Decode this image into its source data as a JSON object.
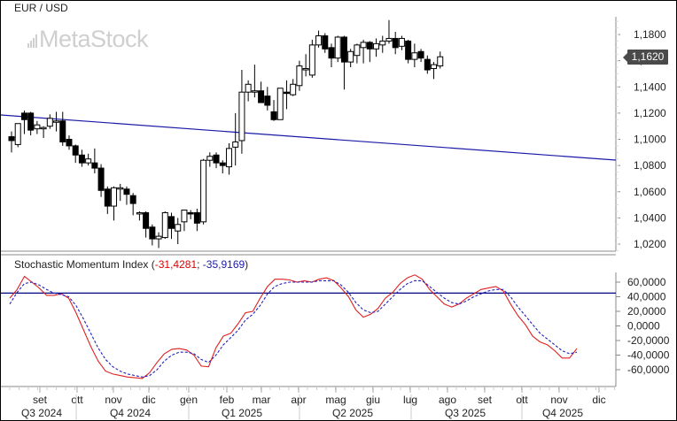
{
  "header": {
    "symbol": "EUR / USD",
    "watermark": "MetaStock"
  },
  "price_panel": {
    "last_price_label": "1,1620",
    "y_ticks": [
      "1,1800",
      "1,1600",
      "1,1400",
      "1,1200",
      "1,1000",
      "1,0800",
      "1,0600",
      "1,0400",
      "1,0200"
    ]
  },
  "indicator_panel": {
    "name": "Stochastic Momentum Index",
    "open_paren": " (",
    "value1": "-31,4281",
    "separator": "; ",
    "value2": "-35,9169",
    "close_paren": ")",
    "y_ticks": [
      "60,0000",
      "40,0000",
      "20,0000",
      "0,0000",
      "-20,0000",
      "-40,0000",
      "-60,0000"
    ],
    "reference_level": 45
  },
  "x_axis": {
    "months": [
      "set",
      "ott",
      "nov",
      "dic",
      "gen",
      "feb",
      "mar",
      "apr",
      "mag",
      "giu",
      "lug",
      "ago",
      "set",
      "ott",
      "nov",
      "dic"
    ],
    "quarters": [
      "Q3 2024",
      "Q4 2024",
      "Q1 2025",
      "Q2 2025",
      "Q3 2025",
      "Q4 2025"
    ]
  },
  "colors": {
    "up_candle": "#ffffff",
    "down_candle": "#000000",
    "trendline": "#1a1aa8",
    "smi_line": "#e02020",
    "signal_line": "#2020c0",
    "reference_line": "#000080",
    "last_price_tag": "#4a4a4a"
  },
  "chart_data": [
    {
      "type": "candlestick",
      "title": "EUR / USD",
      "interval": "weekly",
      "ylim": [
        1.01,
        1.193
      ],
      "y_ticks": [
        1.18,
        1.16,
        1.14,
        1.12,
        1.1,
        1.08,
        1.06,
        1.04,
        1.02
      ],
      "last_price": 1.162,
      "trendline": {
        "start": [
          0,
          1.115
        ],
        "end": [
          1.0,
          1.0815
        ]
      },
      "candles": [
        {
          "o": 1.102,
          "h": 1.106,
          "l": 1.09,
          "c": 1.099
        },
        {
          "o": 1.096,
          "h": 1.109,
          "l": 1.094,
          "c": 1.112
        },
        {
          "o": 1.12,
          "h": 1.122,
          "l": 1.104,
          "c": 1.115
        },
        {
          "o": 1.12,
          "h": 1.121,
          "l": 1.103,
          "c": 1.107
        },
        {
          "o": 1.108,
          "h": 1.114,
          "l": 1.104,
          "c": 1.111
        },
        {
          "o": 1.109,
          "h": 1.11,
          "l": 1.101,
          "c": 1.109
        },
        {
          "o": 1.11,
          "h": 1.119,
          "l": 1.108,
          "c": 1.116
        },
        {
          "o": 1.114,
          "h": 1.121,
          "l": 1.106,
          "c": 1.114
        },
        {
          "o": 1.114,
          "h": 1.121,
          "l": 1.095,
          "c": 1.098
        },
        {
          "o": 1.1,
          "h": 1.103,
          "l": 1.092,
          "c": 1.095
        },
        {
          "o": 1.095,
          "h": 1.096,
          "l": 1.082,
          "c": 1.088
        },
        {
          "o": 1.088,
          "h": 1.092,
          "l": 1.079,
          "c": 1.082
        },
        {
          "o": 1.082,
          "h": 1.089,
          "l": 1.08,
          "c": 1.085
        },
        {
          "o": 1.082,
          "h": 1.093,
          "l": 1.074,
          "c": 1.078
        },
        {
          "o": 1.078,
          "h": 1.081,
          "l": 1.056,
          "c": 1.061
        },
        {
          "o": 1.062,
          "h": 1.064,
          "l": 1.043,
          "c": 1.049
        },
        {
          "o": 1.049,
          "h": 1.064,
          "l": 1.038,
          "c": 1.063
        },
        {
          "o": 1.063,
          "h": 1.066,
          "l": 1.053,
          "c": 1.063
        },
        {
          "o": 1.062,
          "h": 1.064,
          "l": 1.05,
          "c": 1.058
        },
        {
          "o": 1.057,
          "h": 1.059,
          "l": 1.042,
          "c": 1.051
        },
        {
          "o": 1.044,
          "h": 1.045,
          "l": 1.038,
          "c": 1.044
        },
        {
          "o": 1.044,
          "h": 1.045,
          "l": 1.025,
          "c": 1.032
        },
        {
          "o": 1.033,
          "h": 1.035,
          "l": 1.019,
          "c": 1.024
        },
        {
          "o": 1.024,
          "h": 1.029,
          "l": 1.017,
          "c": 1.026
        },
        {
          "o": 1.025,
          "h": 1.045,
          "l": 1.024,
          "c": 1.044
        },
        {
          "o": 1.041,
          "h": 1.044,
          "l": 1.024,
          "c": 1.032
        },
        {
          "o": 1.03,
          "h": 1.04,
          "l": 1.02,
          "c": 1.035
        },
        {
          "o": 1.037,
          "h": 1.045,
          "l": 1.03,
          "c": 1.046
        },
        {
          "o": 1.044,
          "h": 1.046,
          "l": 1.039,
          "c": 1.043
        },
        {
          "o": 1.044,
          "h": 1.047,
          "l": 1.03,
          "c": 1.036
        },
        {
          "o": 1.037,
          "h": 1.085,
          "l": 1.035,
          "c": 1.084
        },
        {
          "o": 1.084,
          "h": 1.09,
          "l": 1.079,
          "c": 1.087
        },
        {
          "o": 1.088,
          "h": 1.09,
          "l": 1.078,
          "c": 1.082
        },
        {
          "o": 1.082,
          "h": 1.084,
          "l": 1.074,
          "c": 1.08
        },
        {
          "o": 1.079,
          "h": 1.097,
          "l": 1.073,
          "c": 1.093
        },
        {
          "o": 1.094,
          "h": 1.12,
          "l": 1.08,
          "c": 1.098
        },
        {
          "o": 1.099,
          "h": 1.153,
          "l": 1.089,
          "c": 1.136
        },
        {
          "o": 1.136,
          "h": 1.145,
          "l": 1.129,
          "c": 1.142
        },
        {
          "o": 1.136,
          "h": 1.157,
          "l": 1.132,
          "c": 1.137
        },
        {
          "o": 1.137,
          "h": 1.144,
          "l": 1.13,
          "c": 1.128
        },
        {
          "o": 1.133,
          "h": 1.14,
          "l": 1.122,
          "c": 1.126
        },
        {
          "o": 1.121,
          "h": 1.13,
          "l": 1.114,
          "c": 1.115
        },
        {
          "o": 1.115,
          "h": 1.138,
          "l": 1.115,
          "c": 1.139
        },
        {
          "o": 1.136,
          "h": 1.145,
          "l": 1.123,
          "c": 1.135
        },
        {
          "o": 1.134,
          "h": 1.146,
          "l": 1.133,
          "c": 1.142
        },
        {
          "o": 1.141,
          "h": 1.16,
          "l": 1.137,
          "c": 1.156
        },
        {
          "o": 1.153,
          "h": 1.165,
          "l": 1.148,
          "c": 1.154
        },
        {
          "o": 1.149,
          "h": 1.176,
          "l": 1.147,
          "c": 1.172
        },
        {
          "o": 1.172,
          "h": 1.183,
          "l": 1.17,
          "c": 1.179
        },
        {
          "o": 1.179,
          "h": 1.181,
          "l": 1.166,
          "c": 1.169
        },
        {
          "o": 1.17,
          "h": 1.173,
          "l": 1.155,
          "c": 1.162
        },
        {
          "o": 1.162,
          "h": 1.179,
          "l": 1.159,
          "c": 1.178
        },
        {
          "o": 1.178,
          "h": 1.179,
          "l": 1.138,
          "c": 1.159
        },
        {
          "o": 1.159,
          "h": 1.169,
          "l": 1.155,
          "c": 1.167
        },
        {
          "o": 1.164,
          "h": 1.173,
          "l": 1.158,
          "c": 1.172
        },
        {
          "o": 1.17,
          "h": 1.176,
          "l": 1.158,
          "c": 1.174
        },
        {
          "o": 1.174,
          "h": 1.175,
          "l": 1.159,
          "c": 1.169
        },
        {
          "o": 1.169,
          "h": 1.177,
          "l": 1.163,
          "c": 1.173
        },
        {
          "o": 1.172,
          "h": 1.179,
          "l": 1.166,
          "c": 1.175
        },
        {
          "o": 1.175,
          "h": 1.191,
          "l": 1.173,
          "c": 1.177
        },
        {
          "o": 1.177,
          "h": 1.182,
          "l": 1.165,
          "c": 1.17
        },
        {
          "o": 1.171,
          "h": 1.179,
          "l": 1.168,
          "c": 1.177
        },
        {
          "o": 1.175,
          "h": 1.176,
          "l": 1.158,
          "c": 1.161
        },
        {
          "o": 1.161,
          "h": 1.173,
          "l": 1.155,
          "c": 1.166
        },
        {
          "o": 1.167,
          "h": 1.169,
          "l": 1.159,
          "c": 1.162
        },
        {
          "o": 1.161,
          "h": 1.164,
          "l": 1.15,
          "c": 1.153
        },
        {
          "o": 1.154,
          "h": 1.159,
          "l": 1.146,
          "c": 1.157
        },
        {
          "o": 1.156,
          "h": 1.167,
          "l": 1.154,
          "c": 1.163
        }
      ]
    },
    {
      "type": "line",
      "title": "Stochastic Momentum Index",
      "ylim": [
        -75,
        78
      ],
      "y_ticks": [
        60,
        40,
        20,
        0,
        -20,
        -40,
        -60
      ],
      "reference_line": 45,
      "series": [
        {
          "name": "SMI",
          "values": [
            38,
            50,
            68,
            60,
            52,
            42,
            42,
            44,
            38,
            18,
            -5,
            -28,
            -48,
            -62,
            -66,
            -68,
            -70,
            -71,
            -72,
            -64,
            -50,
            -38,
            -32,
            -31,
            -33,
            -40,
            -55,
            -56,
            -30,
            -14,
            -10,
            3,
            18,
            20,
            38,
            54,
            64,
            64,
            63,
            60,
            62,
            60,
            64,
            66,
            62,
            52,
            40,
            22,
            12,
            16,
            24,
            38,
            46,
            58,
            66,
            70,
            64,
            50,
            40,
            30,
            26,
            30,
            38,
            44,
            50,
            52,
            54,
            48,
            30,
            14,
            2,
            -14,
            -22,
            -26,
            -34,
            -44,
            -44,
            -31
          ]
        },
        {
          "name": "Signal",
          "values": [
            30,
            46,
            58,
            60,
            56,
            50,
            45,
            43,
            40,
            28,
            10,
            -10,
            -30,
            -46,
            -56,
            -62,
            -66,
            -68,
            -70,
            -68,
            -60,
            -48,
            -40,
            -36,
            -36,
            -38,
            -46,
            -50,
            -40,
            -26,
            -16,
            -6,
            8,
            16,
            28,
            44,
            54,
            58,
            60,
            60,
            60,
            60,
            62,
            62,
            62,
            56,
            46,
            32,
            22,
            18,
            20,
            30,
            40,
            50,
            58,
            62,
            62,
            54,
            46,
            38,
            32,
            30,
            34,
            40,
            44,
            48,
            50,
            50,
            40,
            26,
            14,
            2,
            -10,
            -18,
            -26,
            -34,
            -38,
            -36
          ]
        }
      ]
    }
  ]
}
